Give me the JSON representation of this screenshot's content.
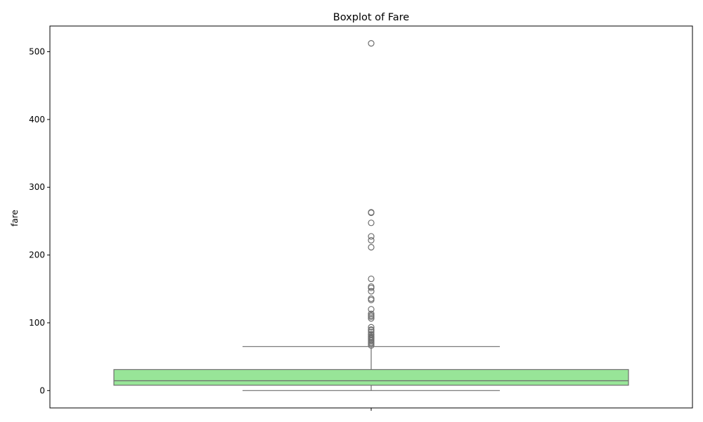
{
  "chart_data": {
    "type": "boxplot",
    "title": "Boxplot of Fare",
    "xlabel": "",
    "ylabel": "fare",
    "ylim": [
      -25.6,
      537.9
    ],
    "yticks": [
      0,
      100,
      200,
      300,
      400,
      500
    ],
    "grid": false,
    "legend": false,
    "box": {
      "min": 0,
      "q1": 7.91,
      "median": 14.45,
      "q3": 31.0,
      "whisker_low": 0,
      "whisker_high": 65.0
    },
    "outliers": [
      512.33,
      263,
      262.38,
      247.52,
      227.53,
      221.78,
      211.5,
      164.87,
      153.46,
      151.55,
      146.52,
      135.63,
      133.65,
      120.0,
      113.28,
      110.88,
      108.9,
      106.43,
      93.5,
      90.0,
      89.1,
      86.5,
      83.16,
      82.17,
      79.65,
      78.85,
      77.29,
      76.73,
      75.25,
      73.5,
      71.28,
      69.55,
      66.6
    ]
  },
  "colors": {
    "box_fill": "#98e598",
    "line": "#6e6e6e",
    "axes": "#000000"
  }
}
